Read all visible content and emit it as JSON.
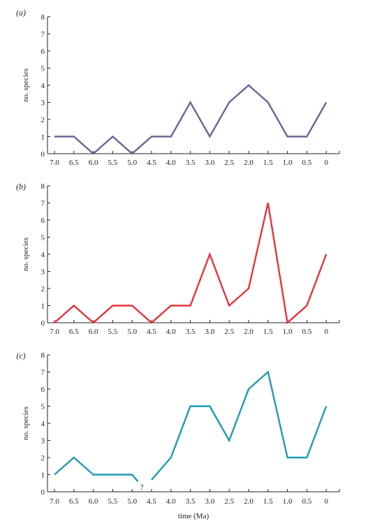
{
  "chart_data": [
    {
      "type": "line",
      "panel_label": "(a)",
      "ylabel": "no. species",
      "xlabel": "",
      "ylim": [
        0,
        8
      ],
      "yticks": [
        "0",
        "1",
        "2",
        "3",
        "4",
        "5",
        "6",
        "7",
        "8"
      ],
      "x_tick_labels": [
        "7.0",
        "6.5",
        "6.0",
        "5.5",
        "5.0",
        "4.5",
        "4.0",
        "3.5",
        "3.0",
        "2.5",
        "2.0",
        "1.5",
        "1.0",
        "0.5",
        "0"
      ],
      "color": "#6b6494",
      "series": [
        {
          "segments": [
            {
              "x": [
                7.0,
                6.5,
                6.0,
                5.5,
                5.0,
                4.5,
                4.0,
                3.5,
                3.0,
                2.5,
                2.0,
                1.5,
                1.0,
                0.5,
                0
              ],
              "y": [
                1,
                1,
                0,
                1,
                0,
                1,
                1,
                3,
                1,
                3,
                4,
                3,
                1,
                1,
                3
              ]
            }
          ]
        }
      ]
    },
    {
      "type": "line",
      "panel_label": "(b)",
      "ylabel": "no. species",
      "xlabel": "",
      "ylim": [
        0,
        8
      ],
      "yticks": [
        "0",
        "1",
        "2",
        "3",
        "4",
        "5",
        "6",
        "7",
        "8"
      ],
      "x_tick_labels": [
        "7.0",
        "6.5",
        "6.0",
        "5.5",
        "5.0",
        "4.5",
        "4.0",
        "3.5",
        "3.0",
        "2.5",
        "2.0",
        "1.5",
        "1.0",
        "0.5",
        "0"
      ],
      "color": "#e5333a",
      "series": [
        {
          "segments": [
            {
              "x": [
                7.0,
                6.5,
                6.0,
                5.5,
                5.0,
                4.5,
                4.0,
                3.5,
                3.0,
                2.5,
                2.0,
                1.5,
                1.0,
                0.5,
                0
              ],
              "y": [
                0,
                1,
                0,
                1,
                1,
                0,
                1,
                1,
                4,
                1,
                2,
                7,
                0,
                1,
                4
              ]
            }
          ]
        }
      ]
    },
    {
      "type": "line",
      "panel_label": "(c)",
      "ylabel": "no. species",
      "xlabel": "time (Ma)",
      "ylim": [
        0,
        8
      ],
      "yticks": [
        "0",
        "1",
        "2",
        "3",
        "4",
        "5",
        "6",
        "7",
        "8"
      ],
      "x_tick_labels": [
        "7.0",
        "6.5",
        "6.0",
        "5.5",
        "5.0",
        "4.5",
        "4.0",
        "3.5",
        "3.0",
        "2.5",
        "2.0",
        "1.5",
        "1.0",
        "0.5",
        "0"
      ],
      "color": "#1e9ab8",
      "gap_annotation": {
        "x": 4.75,
        "y": 0.15,
        "text": "?"
      },
      "series": [
        {
          "segments": [
            {
              "x": [
                7.0,
                6.5,
                6.0,
                5.5,
                5.0,
                4.85
              ],
              "y": [
                1,
                2,
                1,
                1,
                1,
                0.6
              ]
            },
            {
              "x": [
                4.5,
                4.0,
                3.5,
                3.0,
                2.5,
                2.0,
                1.5,
                1.0,
                0.5,
                0
              ],
              "y": [
                0.7,
                2,
                5,
                5,
                3,
                6,
                7,
                2,
                2,
                5
              ]
            }
          ]
        }
      ]
    }
  ]
}
